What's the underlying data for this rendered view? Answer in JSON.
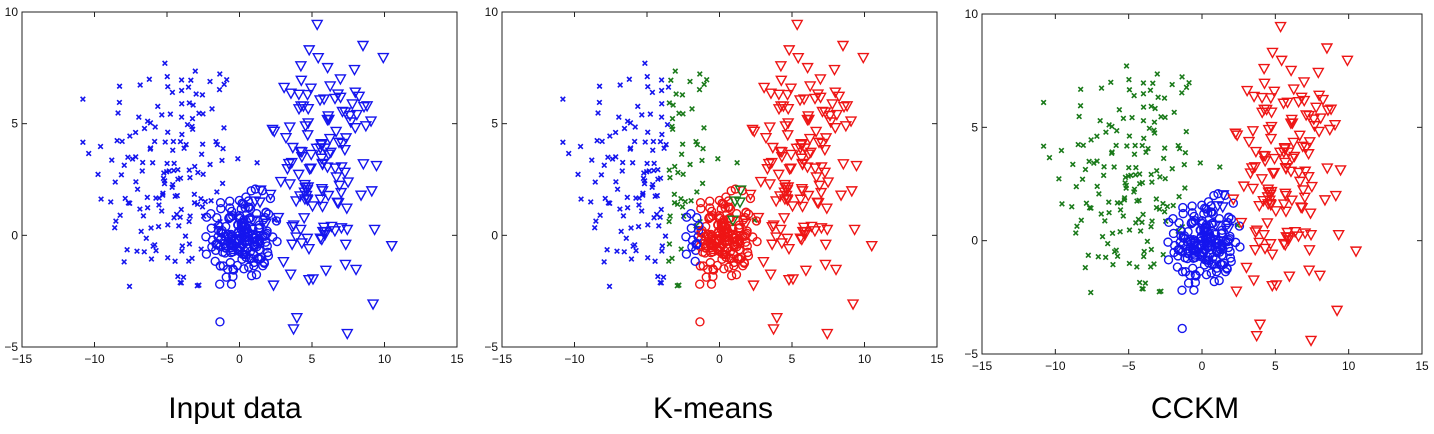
{
  "chart_data": [
    {
      "type": "scatter",
      "caption": "Input data",
      "xlim": [
        -15,
        15
      ],
      "ylim": [
        -5,
        10
      ],
      "xticks": [
        "−15",
        "−10",
        "−5",
        "0",
        "5",
        "10",
        "15"
      ],
      "yticks": [
        "−5",
        "0",
        "5",
        "10"
      ],
      "grid": false,
      "markers": {
        "cross": {
          "color": "#1515ee"
        },
        "circle": {
          "color": "#1515ee"
        },
        "tri": {
          "color": "#1515ee"
        }
      }
    },
    {
      "type": "scatter",
      "caption": "K-means",
      "xlim": [
        -15,
        15
      ],
      "ylim": [
        -5,
        10
      ],
      "xticks": [
        "−15",
        "−10",
        "−5",
        "0",
        "5",
        "10",
        "15"
      ],
      "yticks": [
        "−5",
        "0",
        "5",
        "10"
      ],
      "grid": false,
      "markers": {
        "cross": {
          "color": "#1a7a1a",
          "left_color": "#1515ee",
          "split_x": -3.5
        },
        "circle": {
          "color": "#ee1515",
          "left_color": "#1515ee",
          "split_x": -1.4
        },
        "tri": {
          "color": "#ee1515",
          "left_color": "#1a7a1a",
          "split_x": 1.5
        }
      }
    },
    {
      "type": "scatter",
      "caption": "CCKM",
      "xlim": [
        -15,
        15
      ],
      "ylim": [
        -5,
        10
      ],
      "xticks": [
        "−15",
        "−10",
        "−5",
        "0",
        "5",
        "10",
        "15"
      ],
      "yticks": [
        "−5",
        "0",
        "5",
        "10"
      ],
      "grid": false,
      "markers": {
        "cross": {
          "color": "#1a7a1a"
        },
        "circle": {
          "color": "#1515ee"
        },
        "tri": {
          "color": "#ee1515",
          "left_color": "#1515ee",
          "split_x": 2.0
        }
      }
    }
  ]
}
